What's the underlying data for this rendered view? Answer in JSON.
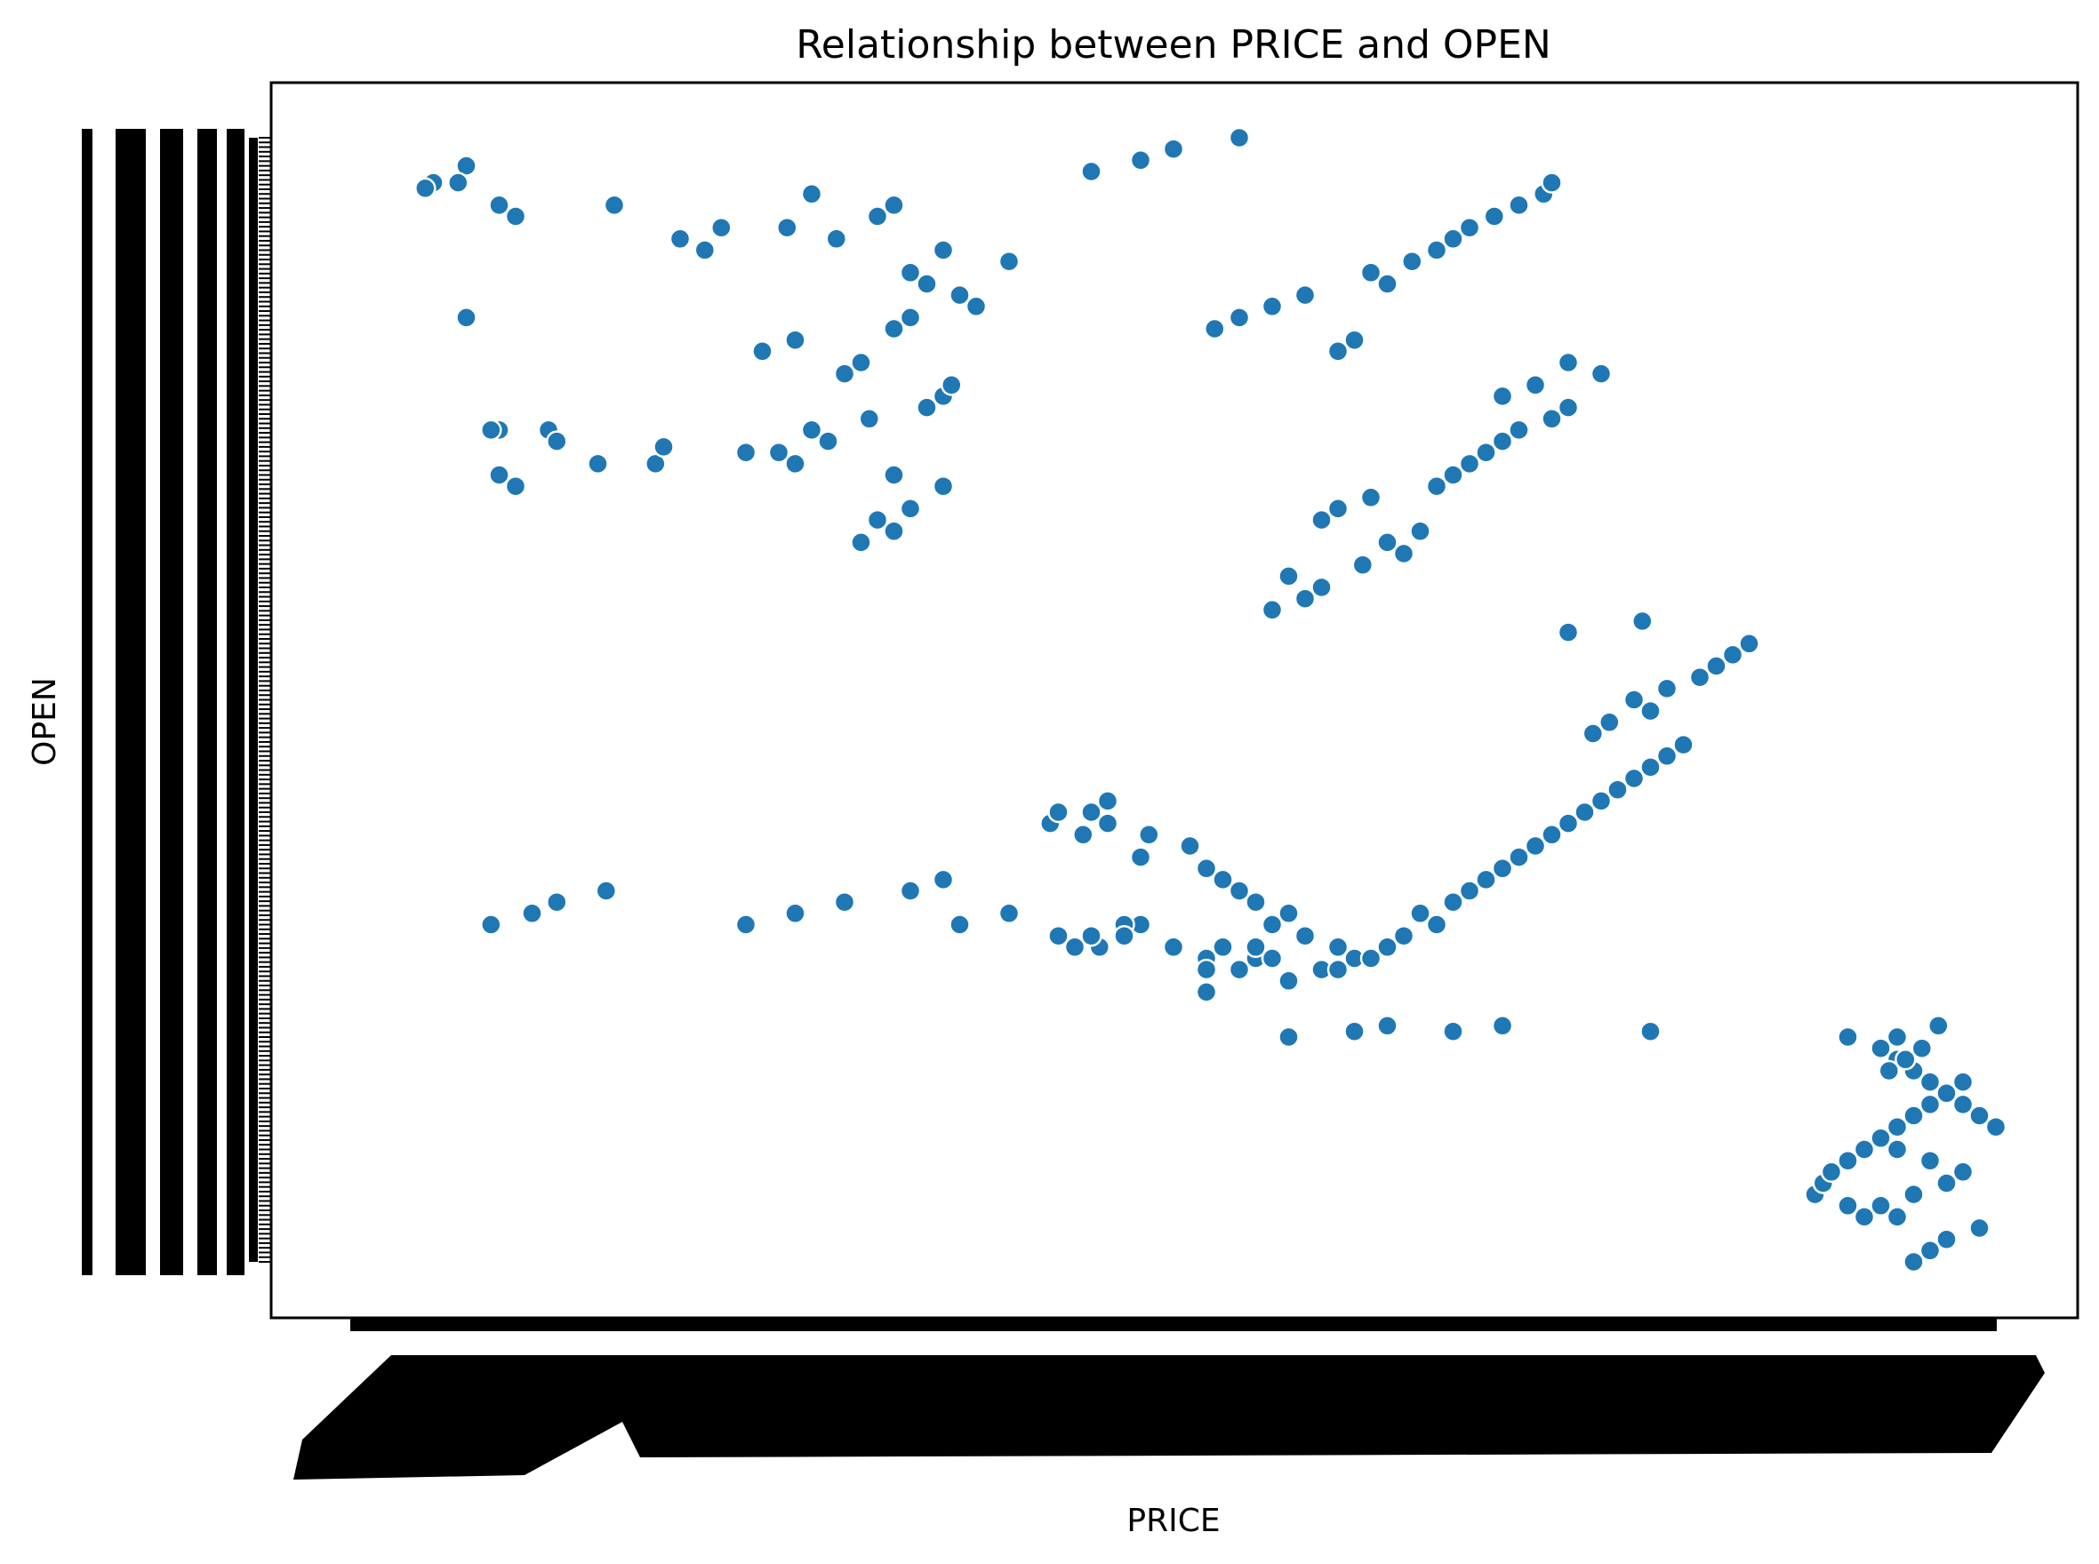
{
  "chart_data": {
    "type": "scatter",
    "title": "Relationship between PRICE and OPEN",
    "xlabel": "PRICE",
    "ylabel": "OPEN",
    "grid": false,
    "legend": "none",
    "x_axis": "categorical ticks, densely overlapping, rotated labels (illegible)",
    "y_axis": "categorical ticks, densely overlapping labels (illegible)",
    "xlim": [
      0,
      100
    ],
    "ylim": [
      0,
      100
    ],
    "point_color": "#1f77b4",
    "series": [
      {
        "x": [
          5,
          4.5,
          7,
          6.5,
          10,
          9,
          16,
          21.5,
          20,
          22.5,
          7,
          9,
          8.5,
          12,
          12.5,
          10,
          9,
          15,
          18.5,
          19,
          24,
          31,
          32,
          33,
          34,
          36,
          33,
          27,
          26,
          29,
          28,
          31.5,
          35,
          36,
          36.5,
          30,
          31,
          25,
          27,
          33,
          34,
          38,
          37,
          35,
          34,
          40,
          36,
          29.5,
          26.5,
          32,
          33,
          28,
          8.5,
          11,
          12.5,
          15.5,
          24,
          27,
          30,
          34,
          36,
          37,
          40,
          45.5,
          43,
          44,
          48,
          47,
          45,
          47,
          50,
          52,
          53,
          55,
          52,
          56,
          54,
          57,
          56,
          55,
          59,
          52,
          44.5,
          42.5,
          43,
          46,
          45,
          46,
          48.5,
          51,
          48,
          52,
          53,
          54,
          55,
          57,
          56,
          58,
          60,
          61,
          60,
          62,
          63,
          64,
          66,
          65,
          67,
          68,
          69,
          70,
          71,
          72,
          73,
          74,
          75,
          76,
          77,
          78,
          79,
          80,
          81,
          75.5,
          76.5,
          79,
          78,
          80,
          82,
          83,
          84,
          85,
          74,
          78.5,
          56,
          58,
          59,
          57,
          61.5,
          64,
          63,
          65,
          59,
          60,
          62,
          66,
          67,
          68,
          69,
          70,
          71,
          73,
          74,
          70,
          72,
          76,
          74,
          60,
          61,
          52.5,
          54,
          56,
          58,
          63,
          62,
          64.5,
          66,
          67,
          68,
          69.5,
          71,
          72.5,
          73,
          45,
          48,
          50,
          54,
          57,
          61,
          63,
          67,
          70,
          79,
          91,
          93,
          94,
          95,
          96,
          97,
          98,
          99,
          100,
          93,
          94,
          96,
          98,
          97,
          95,
          91,
          92,
          99,
          97,
          96,
          95,
          94,
          93,
          89,
          89.5,
          90,
          91,
          92,
          93,
          94,
          95,
          96,
          97,
          98,
          93.5,
          94.5,
          95.5,
          94,
          96.5
        ],
        "y": [
          96,
          95.5,
          97.5,
          96,
          93,
          94,
          94,
          90,
          91,
          92,
          84,
          74,
          74,
          74,
          73,
          69,
          70,
          71,
          71,
          72.5,
          72,
          64,
          66,
          65,
          67,
          69,
          70,
          71,
          72,
          73,
          74,
          75,
          76,
          77,
          78,
          79,
          80,
          81,
          82,
          83,
          84,
          85,
          86,
          87,
          88,
          89,
          90,
          91,
          92,
          93,
          94,
          95,
          30,
          31,
          32,
          33,
          30,
          31,
          32,
          33,
          34,
          30,
          31,
          28,
          29,
          28,
          30,
          30,
          29,
          29,
          28,
          27,
          28,
          27,
          26,
          27,
          26,
          25,
          27,
          28,
          26,
          24,
          38,
          39,
          40,
          41,
          40,
          39,
          38,
          37,
          36,
          35,
          34,
          33,
          32,
          31,
          30,
          29,
          28,
          27,
          26,
          27,
          28,
          29,
          30,
          31,
          32,
          33,
          34,
          35,
          36,
          37,
          38,
          39,
          40,
          41,
          42,
          43,
          44,
          45,
          46,
          47,
          48,
          49,
          50,
          51,
          52,
          53,
          54,
          55,
          56,
          57,
          58,
          59,
          60,
          61,
          62,
          63,
          64,
          65,
          66,
          67,
          68,
          69,
          70,
          71,
          72,
          73,
          74,
          75,
          76,
          77,
          78,
          79,
          80,
          81,
          82,
          83,
          84,
          85,
          86,
          87,
          88,
          89,
          90,
          91,
          92,
          93,
          94,
          95,
          96,
          97,
          98,
          99,
          100,
          20,
          20.5,
          21,
          20.5,
          21,
          20.5,
          20,
          19,
          18,
          17,
          16,
          15,
          14,
          13,
          12,
          11,
          10,
          9,
          8,
          7,
          6,
          5,
          4,
          3,
          2,
          1,
          0,
          4,
          5,
          6,
          7,
          8,
          9,
          10,
          11,
          12,
          13,
          14,
          15,
          16,
          17,
          18,
          19,
          20,
          21
        ],
        "y_comment_free": true
      }
    ]
  }
}
